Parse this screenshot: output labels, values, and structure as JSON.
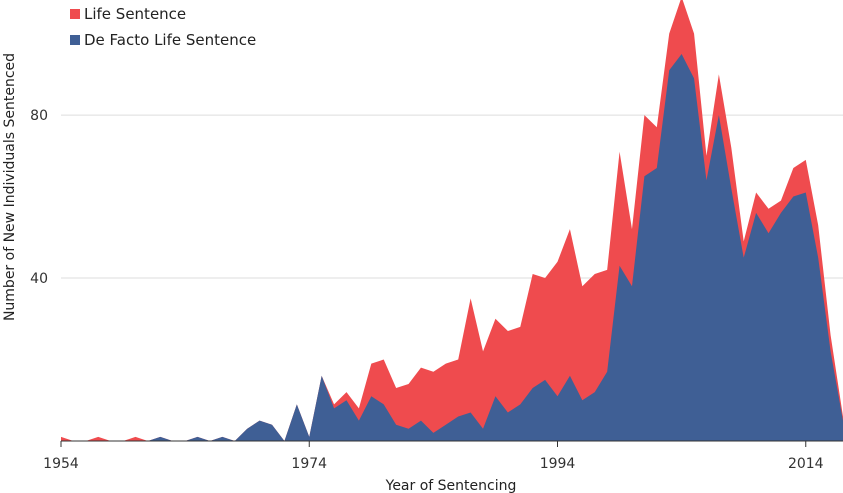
{
  "chart_data": {
    "type": "area",
    "stacked": true,
    "title": "",
    "xlabel": "Year of Sentencing",
    "ylabel": "Number of New Individuals Sentenced",
    "xlim": [
      1954,
      2017
    ],
    "ylim": [
      0,
      108
    ],
    "x_ticks": [
      1954,
      1974,
      1994,
      2014
    ],
    "y_ticks": [
      40,
      80
    ],
    "grid": "horizontal",
    "legend_position": "top-left",
    "x": [
      1954,
      1955,
      1956,
      1957,
      1958,
      1959,
      1960,
      1961,
      1962,
      1963,
      1964,
      1965,
      1966,
      1967,
      1968,
      1969,
      1970,
      1971,
      1972,
      1973,
      1974,
      1975,
      1976,
      1977,
      1978,
      1979,
      1980,
      1981,
      1982,
      1983,
      1984,
      1985,
      1986,
      1987,
      1988,
      1989,
      1990,
      1991,
      1992,
      1993,
      1994,
      1995,
      1996,
      1997,
      1998,
      1999,
      2000,
      2001,
      2002,
      2003,
      2004,
      2005,
      2006,
      2007,
      2008,
      2009,
      2010,
      2011,
      2012,
      2013,
      2014,
      2015,
      2016,
      2017
    ],
    "series": [
      {
        "name": "De Facto Life Sentence",
        "color": "#3f5f95",
        "values": [
          0,
          0,
          0,
          0,
          0,
          0,
          0,
          0,
          1,
          0,
          0,
          1,
          0,
          1,
          0,
          3,
          5,
          4,
          0,
          9,
          1,
          16,
          8,
          10,
          5,
          11,
          9,
          4,
          3,
          5,
          2,
          4,
          6,
          7,
          3,
          11,
          7,
          9,
          13,
          15,
          11,
          16,
          10,
          12,
          17,
          43,
          38,
          65,
          67,
          91,
          95,
          89,
          64,
          80,
          62,
          45,
          56,
          51,
          56,
          60,
          61,
          45,
          22,
          5
        ],
        "fill_to_zero": [
          1,
          0,
          0,
          1,
          0,
          0,
          1,
          0,
          1,
          0,
          0,
          1,
          0,
          1,
          0,
          3,
          5,
          4,
          0,
          9,
          1,
          16,
          9,
          12,
          8,
          19,
          20,
          13,
          14,
          18,
          17,
          19,
          20,
          35,
          22,
          30,
          27,
          28,
          41,
          40,
          44,
          52,
          38,
          41,
          42,
          71,
          52,
          80,
          77,
          100,
          109,
          100,
          70,
          90,
          72,
          49,
          61,
          57,
          59,
          67,
          69,
          53,
          26,
          6
        ]
      },
      {
        "name": "Life Sentence",
        "color": "#ef4b4e",
        "values": [
          1,
          0,
          0,
          1,
          0,
          0,
          1,
          0,
          0,
          0,
          0,
          0,
          0,
          0,
          0,
          0,
          0,
          0,
          0,
          0,
          0,
          0,
          1,
          2,
          3,
          8,
          11,
          9,
          11,
          13,
          15,
          15,
          14,
          28,
          19,
          19,
          20,
          19,
          28,
          25,
          33,
          36,
          28,
          29,
          25,
          28,
          14,
          15,
          10,
          9,
          14,
          11,
          6,
          10,
          10,
          4,
          5,
          6,
          3,
          7,
          8,
          8,
          4,
          1
        ]
      }
    ]
  },
  "legend": {
    "items": [
      "Life Sentence",
      "De Facto Life Sentence"
    ]
  }
}
